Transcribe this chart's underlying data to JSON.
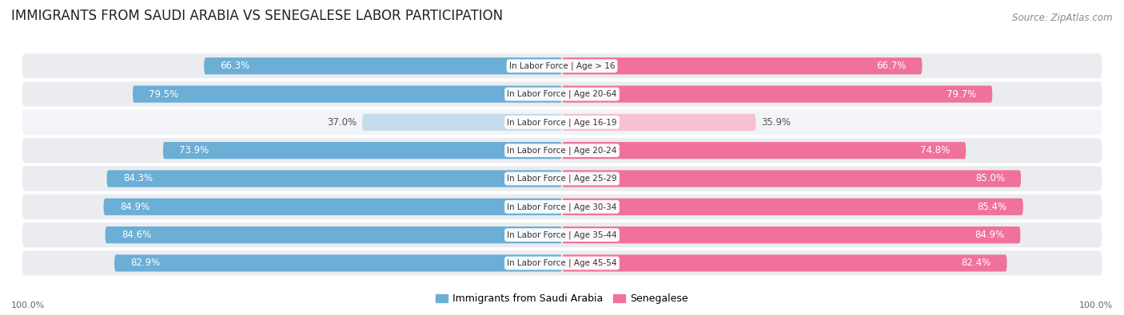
{
  "title": "IMMIGRANTS FROM SAUDI ARABIA VS SENEGALESE LABOR PARTICIPATION",
  "source": "Source: ZipAtlas.com",
  "categories": [
    "In Labor Force | Age > 16",
    "In Labor Force | Age 20-64",
    "In Labor Force | Age 16-19",
    "In Labor Force | Age 20-24",
    "In Labor Force | Age 25-29",
    "In Labor Force | Age 30-34",
    "In Labor Force | Age 35-44",
    "In Labor Force | Age 45-54"
  ],
  "saudi_values": [
    66.3,
    79.5,
    37.0,
    73.9,
    84.3,
    84.9,
    84.6,
    82.9
  ],
  "senegalese_values": [
    66.7,
    79.7,
    35.9,
    74.8,
    85.0,
    85.4,
    84.9,
    82.4
  ],
  "saudi_color": "#6BAED6",
  "saudi_color_light": "#C6DCEC",
  "senegalese_color": "#F0729A",
  "senegalese_color_light": "#F8C0D0",
  "row_bg_color": "#EAECF0",
  "row_bg_color_light": "#F2F4F7",
  "label_color_white": "#FFFFFF",
  "label_color_dark": "#555555",
  "title_fontsize": 12,
  "source_fontsize": 8.5,
  "bar_label_fontsize": 8.5,
  "cat_label_fontsize": 7.5,
  "legend_fontsize": 9,
  "axis_label_fontsize": 8,
  "figsize": [
    14.06,
    3.95
  ]
}
